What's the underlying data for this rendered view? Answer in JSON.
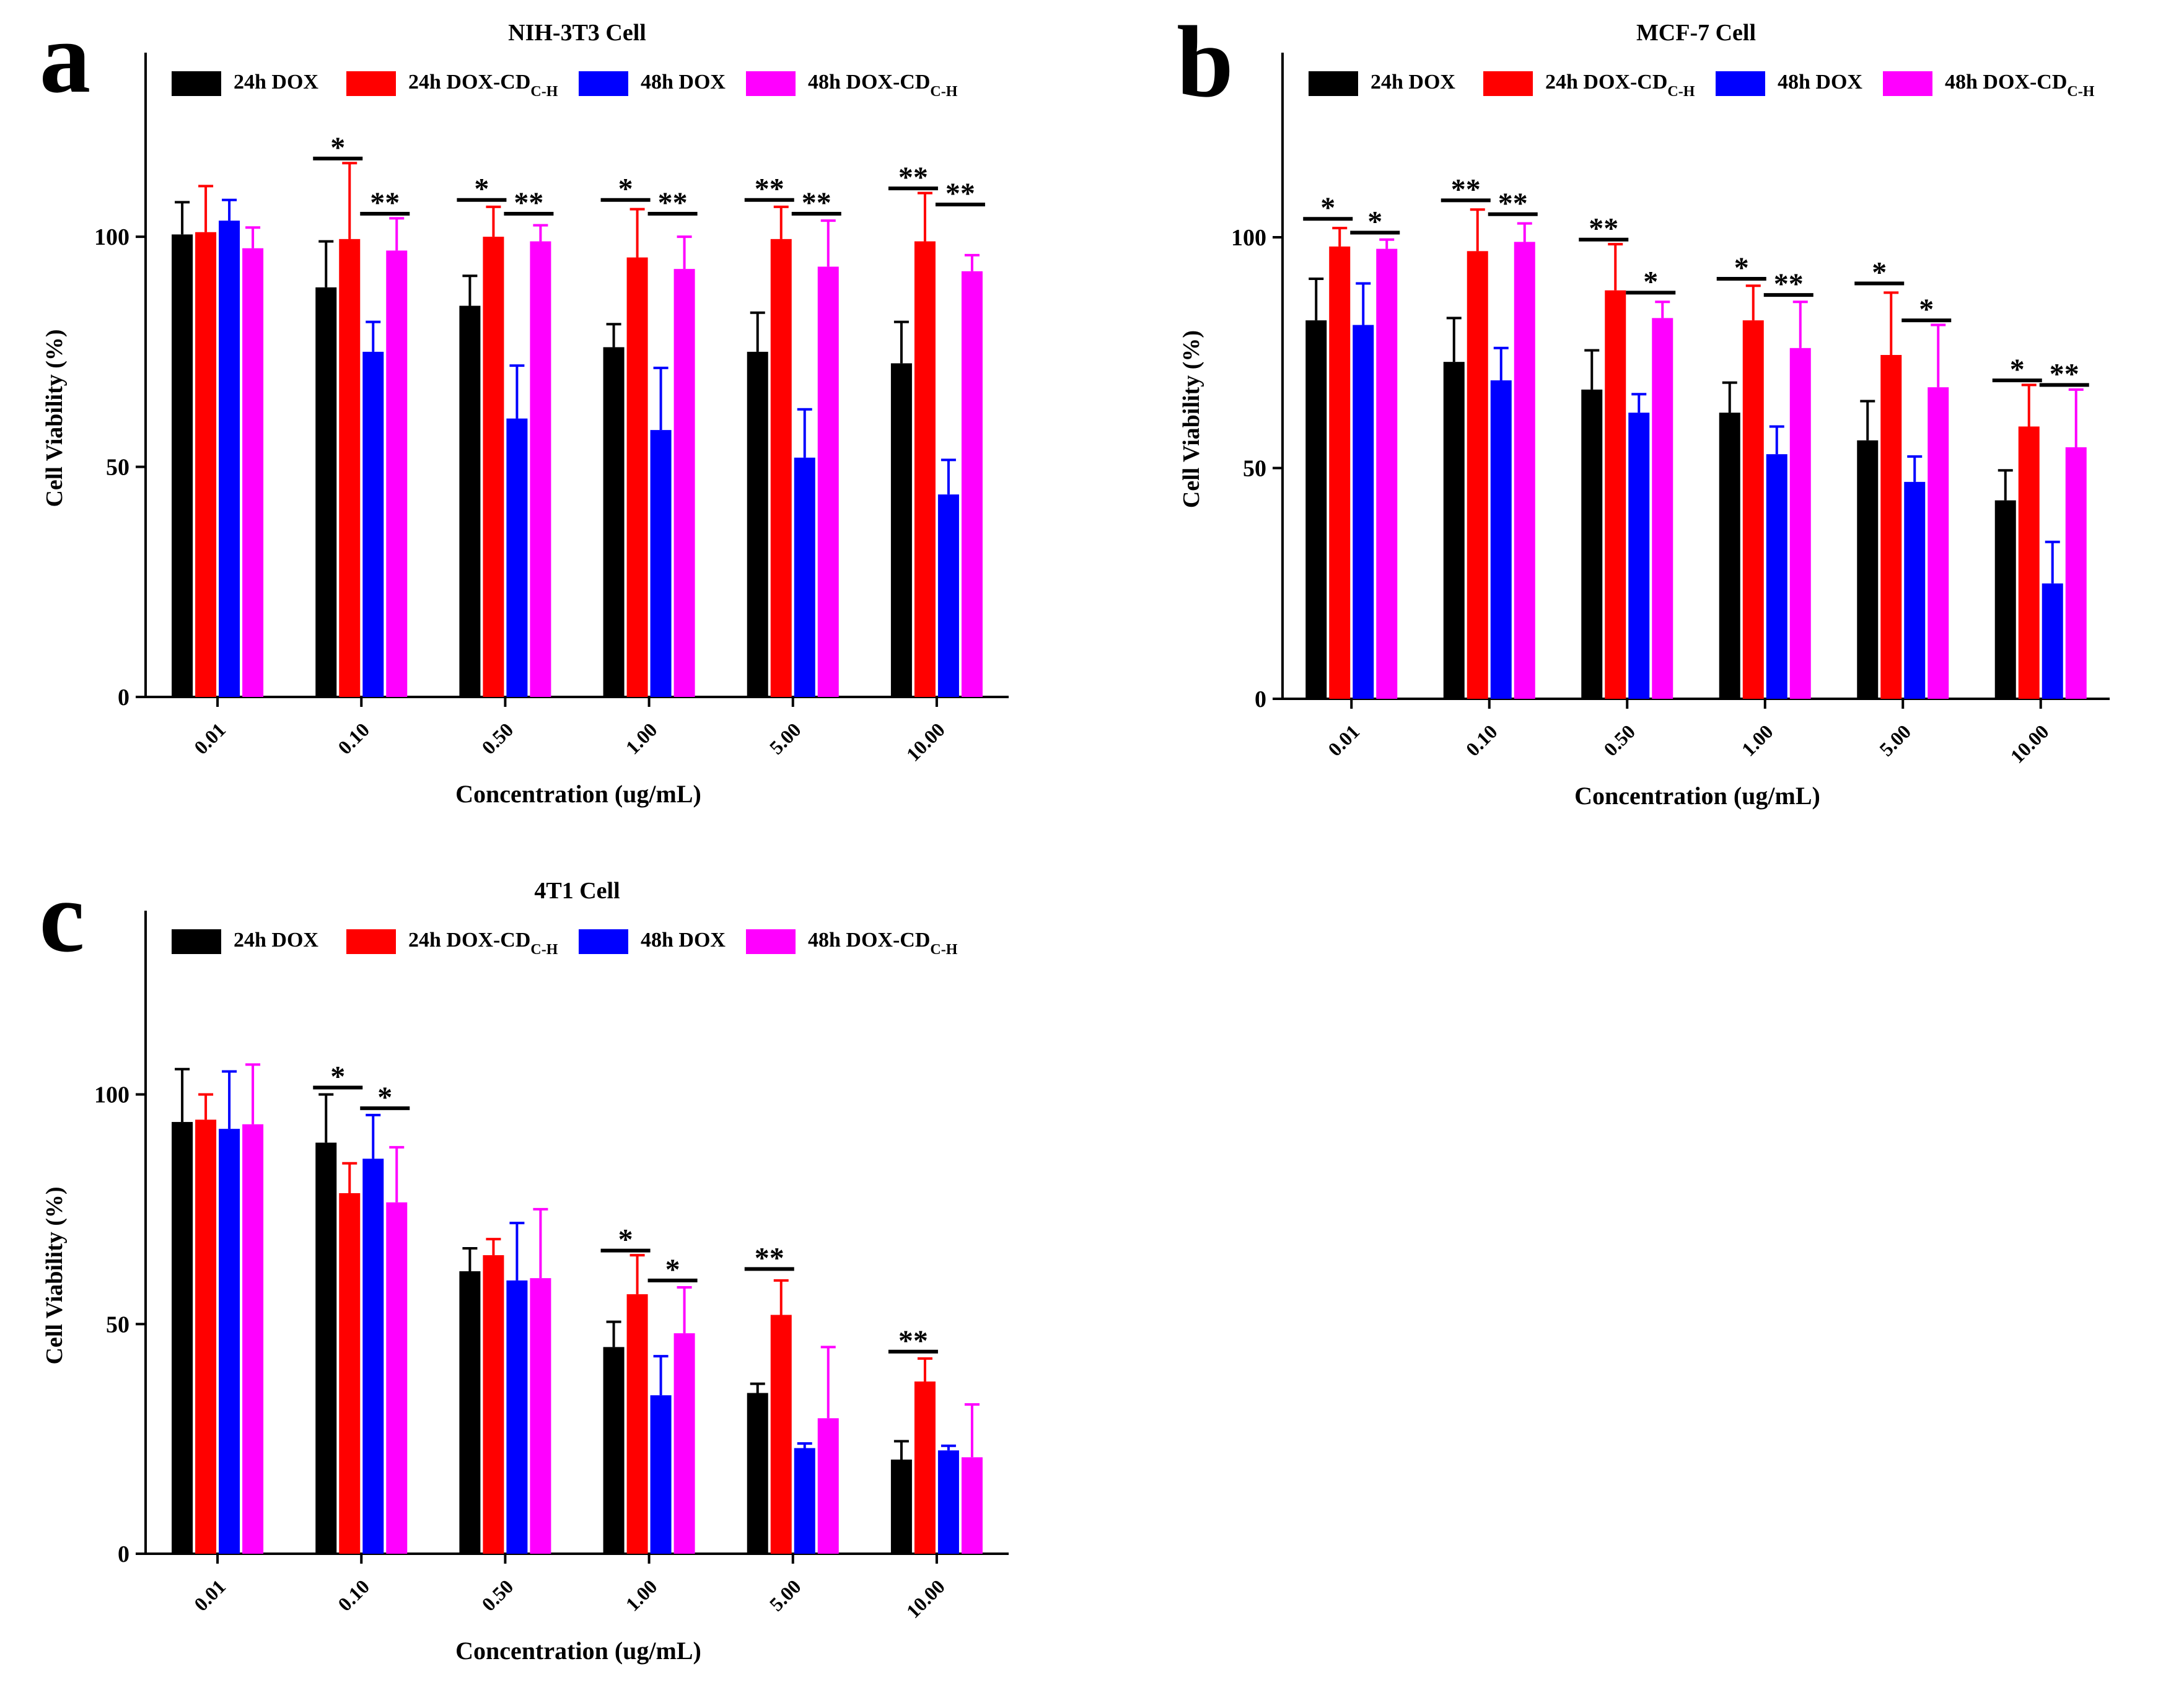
{
  "chart_data": [
    {
      "type": "bar",
      "panel_label": "a",
      "title": "NIH-3T3 Cell",
      "xlabel": "Concentration (ug/mL)",
      "ylabel": "Cell Viability (%)",
      "ylim": [
        0,
        140
      ],
      "yticks": [
        0,
        50,
        100
      ],
      "categories": [
        "0.01",
        "0.10",
        "0.50",
        "1.00",
        "5.00",
        "10.00"
      ],
      "legend_position": "top",
      "series": [
        {
          "name": "24h DOX",
          "color": "#000000",
          "values": [
            100.5,
            89,
            85,
            76,
            75,
            72.5
          ],
          "errors": [
            7,
            10,
            6.5,
            5,
            8.5,
            9
          ]
        },
        {
          "name": "24h DOX-CD",
          "name_subscript": "C-H",
          "color": "#ff0000",
          "values": [
            101,
            99.5,
            100,
            95.5,
            99.5,
            99
          ],
          "errors": [
            10,
            16.5,
            6.5,
            10.5,
            7,
            10.5
          ]
        },
        {
          "name": "48h DOX",
          "color": "#0000ff",
          "values": [
            103.5,
            75,
            60.5,
            58,
            52,
            44
          ],
          "errors": [
            4.5,
            6.5,
            11.5,
            13.5,
            10.5,
            7.5
          ]
        },
        {
          "name": "48h DOX-CD",
          "name_subscript": "C-H",
          "color": "#ff00ff",
          "values": [
            97.5,
            97,
            99,
            93,
            93.5,
            92.5
          ],
          "errors": [
            4.5,
            7,
            3.5,
            7,
            10,
            3.5
          ]
        }
      ],
      "annotations": [
        {
          "category": 1,
          "pair": "24h",
          "label": "*",
          "level": 117
        },
        {
          "category": 1,
          "pair": "48h",
          "label": "**",
          "level": 105
        },
        {
          "category": 2,
          "pair": "24h",
          "label": "*",
          "level": 108
        },
        {
          "category": 2,
          "pair": "48h",
          "label": "**",
          "level": 105
        },
        {
          "category": 3,
          "pair": "24h",
          "label": "*",
          "level": 108
        },
        {
          "category": 3,
          "pair": "48h",
          "label": "**",
          "level": 105
        },
        {
          "category": 4,
          "pair": "24h",
          "label": "**",
          "level": 108
        },
        {
          "category": 4,
          "pair": "48h",
          "label": "**",
          "level": 105
        },
        {
          "category": 5,
          "pair": "24h",
          "label": "**",
          "level": 110.5
        },
        {
          "category": 5,
          "pair": "48h",
          "label": "**",
          "level": 107
        }
      ]
    },
    {
      "type": "bar",
      "panel_label": "b",
      "title": "MCF-7 Cell",
      "xlabel": "Concentration (ug/mL)",
      "ylabel": "Cell Viability (%)",
      "ylim": [
        0,
        140
      ],
      "yticks": [
        0,
        50,
        100
      ],
      "categories": [
        "0.01",
        "0.10",
        "0.50",
        "1.00",
        "5.00",
        "10.00"
      ],
      "legend_position": "top",
      "series": [
        {
          "name": "24h DOX",
          "color": "#000000",
          "values": [
            82,
            73,
            67,
            62,
            56,
            43
          ],
          "errors": [
            9,
            9.5,
            8.5,
            6.5,
            8.5,
            6.5
          ]
        },
        {
          "name": "24h DOX-CD",
          "name_subscript": "C-H",
          "color": "#ff0000",
          "values": [
            98,
            97,
            88.5,
            82,
            74.5,
            59
          ],
          "errors": [
            4,
            9,
            10,
            7.5,
            13.5,
            9
          ]
        },
        {
          "name": "48h DOX",
          "color": "#0000ff",
          "values": [
            81,
            69,
            62,
            53,
            47,
            25
          ],
          "errors": [
            9,
            7,
            4,
            6,
            5.5,
            9
          ]
        },
        {
          "name": "48h DOX-CD",
          "name_subscript": "C-H",
          "color": "#ff00ff",
          "values": [
            97.5,
            99,
            82.5,
            76,
            67.5,
            54.5
          ],
          "errors": [
            2,
            4,
            3.5,
            10,
            13.5,
            12.5
          ]
        }
      ],
      "annotations": [
        {
          "category": 0,
          "pair": "24h",
          "label": "*",
          "level": 104
        },
        {
          "category": 0,
          "pair": "48h",
          "label": "*",
          "level": 101
        },
        {
          "category": 1,
          "pair": "24h",
          "label": "**",
          "level": 108
        },
        {
          "category": 1,
          "pair": "48h",
          "label": "**",
          "level": 105
        },
        {
          "category": 2,
          "pair": "24h",
          "label": "**",
          "level": 99.5
        },
        {
          "category": 2,
          "pair": "48h",
          "label": "*",
          "level": 88
        },
        {
          "category": 3,
          "pair": "24h",
          "label": "*",
          "level": 91
        },
        {
          "category": 3,
          "pair": "48h",
          "label": "**",
          "level": 87.5
        },
        {
          "category": 4,
          "pair": "24h",
          "label": "*",
          "level": 90
        },
        {
          "category": 4,
          "pair": "48h",
          "label": "*",
          "level": 82
        },
        {
          "category": 5,
          "pair": "24h",
          "label": "*",
          "level": 69
        },
        {
          "category": 5,
          "pair": "48h",
          "label": "**",
          "level": 68
        }
      ]
    },
    {
      "type": "bar",
      "panel_label": "c",
      "title": "4T1 Cell",
      "xlabel": "Concentration (ug/mL)",
      "ylabel": "Cell Viability (%)",
      "ylim": [
        0,
        140
      ],
      "yticks": [
        0,
        50,
        100
      ],
      "categories": [
        "0.01",
        "0.10",
        "0.50",
        "1.00",
        "5.00",
        "10.00"
      ],
      "legend_position": "top",
      "series": [
        {
          "name": "24h DOX",
          "color": "#000000",
          "values": [
            94,
            89.5,
            61.5,
            45,
            35,
            20.5
          ],
          "errors": [
            11.5,
            10.5,
            5,
            5.5,
            2,
            4
          ]
        },
        {
          "name": "24h DOX-CD",
          "name_subscript": "C-H",
          "color": "#ff0000",
          "values": [
            94.5,
            78.5,
            65,
            56.5,
            52,
            37.5
          ],
          "errors": [
            5.5,
            6.5,
            3.5,
            8.5,
            7.5,
            5
          ]
        },
        {
          "name": "48h DOX",
          "color": "#0000ff",
          "values": [
            92.5,
            86,
            59.5,
            34.5,
            23,
            22.5
          ],
          "errors": [
            12.5,
            9.5,
            12.5,
            8.5,
            1,
            1
          ]
        },
        {
          "name": "48h DOX-CD",
          "name_subscript": "C-H",
          "color": "#ff00ff",
          "values": [
            93.5,
            76.5,
            60,
            48,
            29.5,
            21
          ],
          "errors": [
            13,
            12,
            15,
            10,
            15.5,
            11.5
          ]
        }
      ],
      "annotations": [
        {
          "category": 1,
          "pair": "24h",
          "label": "*",
          "level": 101.5
        },
        {
          "category": 1,
          "pair": "48h",
          "label": "*",
          "level": 97
        },
        {
          "category": 3,
          "pair": "24h",
          "label": "*",
          "level": 66
        },
        {
          "category": 3,
          "pair": "48h",
          "label": "*",
          "level": 59.5
        },
        {
          "category": 4,
          "pair": "24h",
          "label": "**",
          "level": 62
        },
        {
          "category": 5,
          "pair": "24h",
          "label": "**",
          "level": 44
        }
      ]
    }
  ]
}
